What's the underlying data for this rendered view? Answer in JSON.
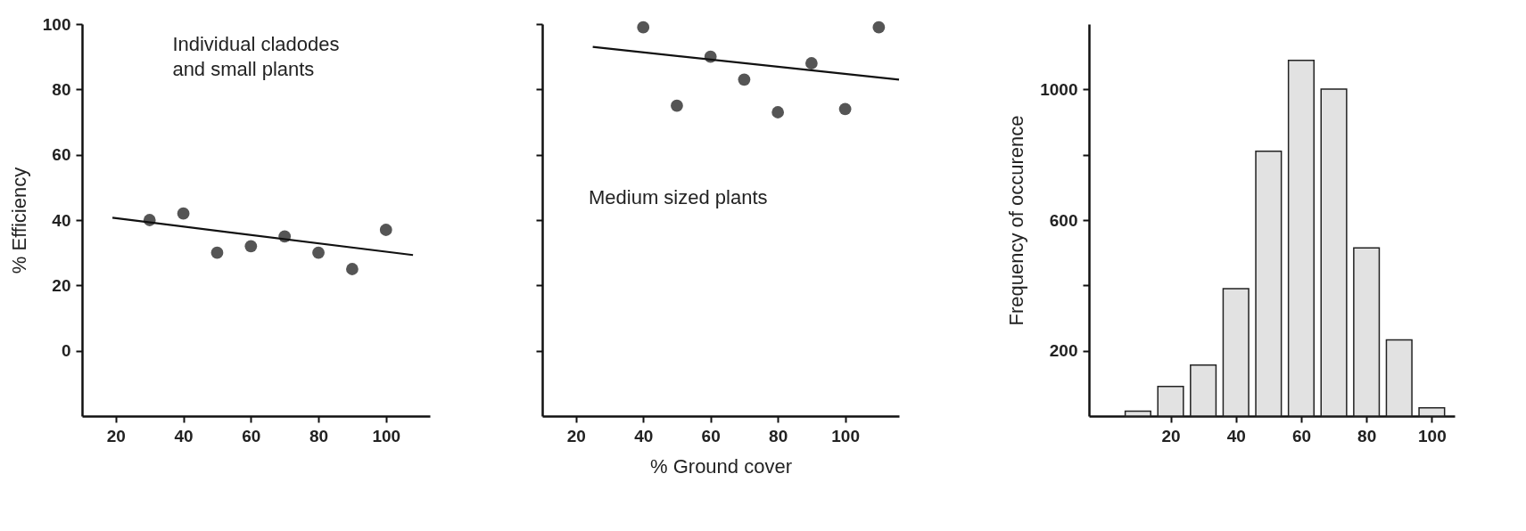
{
  "chart_data": [
    {
      "type": "scatter",
      "ylabel": "% Efficiency",
      "annotations": [
        "Individual cladodes\nand small plants"
      ],
      "xlim": [
        10,
        113
      ],
      "ylim": [
        -20,
        100
      ],
      "xticks": [
        20,
        40,
        60,
        80,
        100
      ],
      "yticks": [
        0,
        20,
        40,
        60,
        80,
        100
      ],
      "grid": false,
      "series": [
        {
          "type": "scatter",
          "marker": "circle",
          "color": "#555555",
          "x": [
            30,
            40,
            50,
            60,
            70,
            80,
            90,
            100
          ],
          "values": [
            40,
            42,
            30,
            32,
            35,
            30,
            25,
            37
          ]
        },
        {
          "type": "line",
          "color": "#111111",
          "x": [
            19,
            108
          ],
          "values": [
            40.7,
            29.3
          ]
        }
      ]
    },
    {
      "type": "scatter",
      "xlabel": "% Ground cover",
      "annotations": [
        "Medium sized plants"
      ],
      "xlim": [
        10,
        116
      ],
      "ylim": [
        -20,
        100
      ],
      "xticks": [
        20,
        40,
        60,
        80,
        100
      ],
      "yticks": [
        {
          "value": 0,
          "label": null
        },
        {
          "value": 20,
          "label": null
        },
        {
          "value": 40,
          "label": null
        },
        {
          "value": 60,
          "label": null
        },
        {
          "value": 80,
          "label": null
        },
        {
          "value": 100,
          "label": null
        }
      ],
      "tick_labels": "x",
      "grid": false,
      "series": [
        {
          "type": "scatter",
          "marker": "circle",
          "color": "#555555",
          "x": [
            40,
            50,
            60,
            70,
            80,
            90,
            100,
            110
          ],
          "values": [
            99,
            75,
            90,
            83,
            73,
            88,
            74,
            99
          ]
        },
        {
          "type": "line",
          "color": "#111111",
          "x": [
            25,
            116
          ],
          "values": [
            93,
            83
          ]
        }
      ]
    },
    {
      "type": "histogram",
      "ylabel": "Frequency of occurence",
      "xlim": [
        -5,
        107
      ],
      "ylim": [
        0,
        1200
      ],
      "xticks": [
        20,
        40,
        60,
        80,
        100
      ],
      "yticks": [
        200,
        {
          "value": 400,
          "label": null
        },
        600,
        {
          "value": 800,
          "label": null
        },
        1000
      ],
      "grid": false,
      "color": "#e2e2e2",
      "bins": [
        5,
        15,
        25,
        35,
        45,
        55,
        65,
        75,
        85,
        95,
        105
      ],
      "values": [
        15,
        91,
        156,
        390,
        811,
        1089,
        1001,
        515,
        233,
        25
      ]
    }
  ]
}
